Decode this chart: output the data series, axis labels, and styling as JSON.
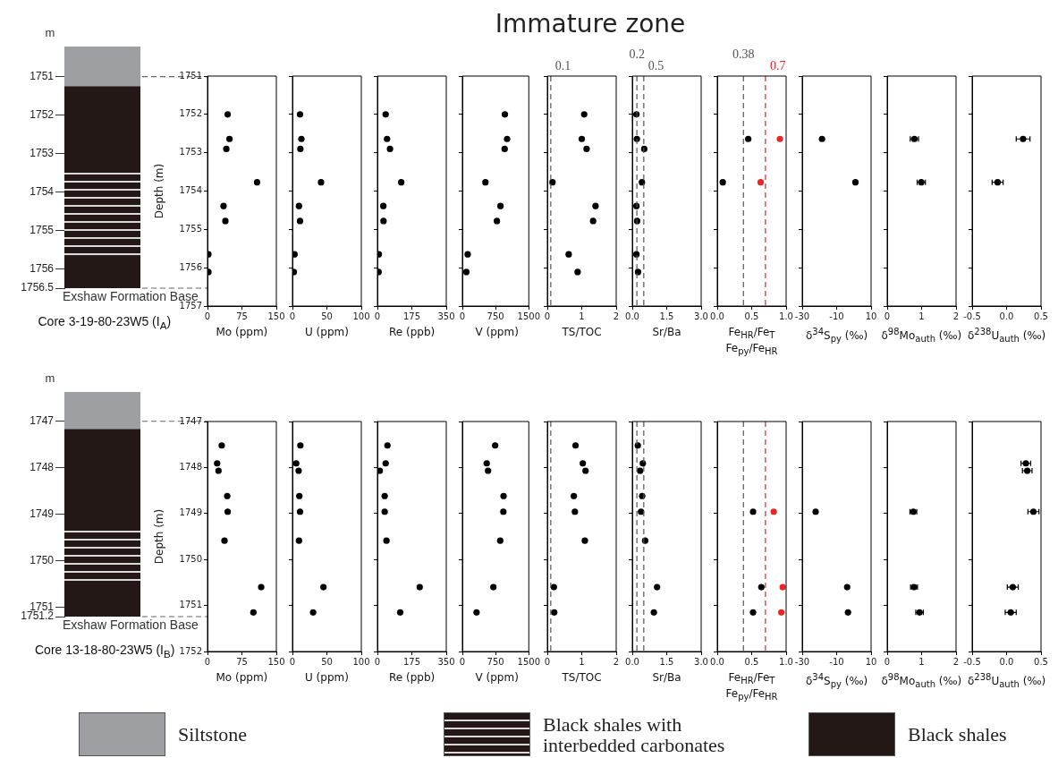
{
  "chart_data": [
    {
      "type": "other",
      "title": "Immature zone"
    },
    {
      "type": "bar",
      "xlabel": "Core 3-19-80-23W5 (I$_{A}$)",
      "ylabel": "m",
      "categories": [
        null
      ],
      "ylim": [
        1756.5,
        1750.22
      ],
      "yticks": [
        1751,
        1752,
        1753,
        1754,
        1755,
        1756,
        1756.5
      ],
      "legend": "bottom",
      "series": [
        {
          "name": "Siltstone",
          "color": "#9d9fa2",
          "base": [
            1750.22
          ],
          "values": [
            1.03
          ]
        },
        {
          "name": "Black shales with interbedded carbonates",
          "color": "#231815",
          "line_style": "solid",
          "base": [
            1753.33
          ],
          "values": [
            2.32
          ]
        },
        {
          "name": "Black shales",
          "color": "#231815",
          "base": [
            1751.25
          ],
          "values": [
            2.08
          ]
        },
        {
          "color": "#231815",
          "base": [
            1755.65
          ],
          "values": [
            0.85
          ]
        }
      ],
      "ref_lines": [
        {
          "axis": "y",
          "value": 1751,
          "label": null,
          "color": "#666666",
          "line_style": "dashed"
        },
        {
          "axis": "y",
          "value": 1756.5,
          "label": "Exshaw Formation Base",
          "color": "#666666",
          "line_style": "dashed"
        }
      ]
    },
    {
      "type": "scatter",
      "xlabel": "Mo (ppm)",
      "ylabel": "Depth (m)",
      "xlim": [
        0,
        150
      ],
      "xticks": [
        0,
        75,
        150
      ],
      "ylim": [
        1757,
        1751
      ],
      "yticks": [
        1751,
        1752,
        1753,
        1754,
        1755,
        1756,
        1757
      ],
      "marker": "circle",
      "series": [
        {
          "color": "#000000",
          "x": [
            44,
            48,
            41,
            108,
            35,
            39,
            2,
            2
          ],
          "values": [
            1752.0,
            1752.64,
            1752.9,
            1753.77,
            1754.39,
            1754.78,
            1755.65,
            1756.11
          ]
        }
      ]
    },
    {
      "type": "scatter",
      "xlabel": "U (ppm)",
      "xlim": [
        0,
        100
      ],
      "xticks": [
        0,
        50,
        100
      ],
      "ylim": [
        1757,
        1751
      ],
      "yticks": [
        1751,
        1752,
        1753,
        1754,
        1755,
        1756,
        1757
      ],
      "marker": "circle",
      "tick_labels": "x",
      "series": [
        {
          "color": "#000000",
          "x": [
            11,
            13,
            11.5,
            41.5,
            9.5,
            11,
            3,
            2
          ],
          "values": [
            1752.0,
            1752.64,
            1752.9,
            1753.77,
            1754.39,
            1754.78,
            1755.65,
            1756.11
          ]
        }
      ]
    },
    {
      "type": "scatter",
      "xlabel": "Re (ppb)",
      "xlim": [
        0,
        350
      ],
      "xticks": [
        0,
        175,
        350
      ],
      "ylim": [
        1757,
        1751
      ],
      "yticks": [
        1751,
        1752,
        1753,
        1754,
        1755,
        1756,
        1757
      ],
      "marker": "circle",
      "tick_labels": "x",
      "series": [
        {
          "color": "#000000",
          "x": [
            42,
            49,
            64,
            121,
            30,
            31,
            7,
            6
          ],
          "values": [
            1752.0,
            1752.64,
            1752.9,
            1753.77,
            1754.39,
            1754.78,
            1755.65,
            1756.11
          ]
        }
      ]
    },
    {
      "type": "scatter",
      "xlabel": "V (ppm)",
      "xlim": [
        0,
        1500
      ],
      "xticks": [
        0,
        750,
        1500
      ],
      "ylim": [
        1757,
        1751
      ],
      "yticks": [
        1751,
        1752,
        1753,
        1754,
        1755,
        1756,
        1757
      ],
      "marker": "circle",
      "tick_labels": "x",
      "series": [
        {
          "color": "#000000",
          "x": [
            960,
            1010,
            955,
            520,
            860,
            780,
            120,
            90
          ],
          "values": [
            1752.0,
            1752.64,
            1752.9,
            1753.77,
            1754.39,
            1754.78,
            1755.65,
            1756.11
          ]
        }
      ]
    },
    {
      "type": "scatter",
      "xlabel": "TS/TOC",
      "xlim": [
        0,
        2
      ],
      "xticks": [
        0,
        1,
        2
      ],
      "ylim": [
        1757,
        1751
      ],
      "yticks": [
        1751,
        1752,
        1753,
        1754,
        1755,
        1756,
        1757
      ],
      "marker": "circle",
      "tick_labels": "x",
      "series": [
        {
          "color": "#000000",
          "x": [
            1.07,
            1.0,
            1.14,
            0.15,
            1.4,
            1.33,
            0.62,
            0.88
          ],
          "values": [
            1752.0,
            1752.64,
            1752.9,
            1753.77,
            1754.39,
            1754.78,
            1755.65,
            1756.11
          ]
        }
      ],
      "ref_lines": [
        {
          "axis": "x",
          "value": 0.1,
          "label": "0.1",
          "color": "#555555",
          "line_style": "dashed"
        }
      ]
    },
    {
      "type": "scatter",
      "xlabel": "Sr/Ba",
      "xlim": [
        0,
        3
      ],
      "xticks": [
        {
          "value": 0,
          "label": "0.0"
        },
        1.5,
        {
          "value": 3,
          "label": "3.0"
        }
      ],
      "ylim": [
        1757,
        1751
      ],
      "yticks": [
        1751,
        1752,
        1753,
        1754,
        1755,
        1756,
        1757
      ],
      "marker": "circle",
      "tick_labels": "x",
      "series": [
        {
          "color": "#000000",
          "x": [
            0.18,
            0.2,
            0.52,
            0.42,
            0.18,
            0.21,
            0.18,
            0.25
          ],
          "values": [
            1752.0,
            1752.64,
            1752.9,
            1753.77,
            1754.39,
            1754.78,
            1755.65,
            1756.11
          ]
        }
      ],
      "ref_lines": [
        {
          "axis": "x",
          "value": 0.2,
          "label": "0.2",
          "color": "#555555",
          "line_style": "dashed"
        },
        {
          "axis": "x",
          "value": 0.5,
          "label": "0.5",
          "color": "#555555",
          "line_style": "dashed"
        }
      ]
    },
    {
      "type": "scatter",
      "xlabel": "Fe$_{HR}$/Fe$_{T}$\nFe$_{py}$/Fe$_{HR}$",
      "xlim": [
        0,
        1
      ],
      "xticks": [
        {
          "value": 0,
          "label": "0.0"
        },
        0.5,
        {
          "value": 1,
          "label": "1.0"
        }
      ],
      "ylim": [
        1757,
        1751
      ],
      "yticks": [
        1751,
        1752,
        1753,
        1754,
        1755,
        1756,
        1757
      ],
      "marker": "circle",
      "tick_labels": "x",
      "series": [
        {
          "color": "#000000",
          "x": [
            0.45,
            0.08
          ],
          "values": [
            1752.64,
            1753.77
          ]
        },
        {
          "color": "#e8262a",
          "x": [
            0.91,
            0.63
          ],
          "values": [
            1752.64,
            1753.77
          ]
        }
      ],
      "ref_lines": [
        {
          "axis": "x",
          "value": 0.38,
          "label": "0.38",
          "color": "#555555",
          "line_style": "dashed"
        },
        {
          "axis": "x",
          "value": 0.7,
          "label": "0.7",
          "color": "#e8262a",
          "line_style": "dashed"
        }
      ]
    },
    {
      "type": "scatter",
      "xlabel": "δ$^{34}$S$_{py}$ (‰)",
      "xlim": [
        -30,
        10
      ],
      "xticks": [
        -30,
        -10,
        10
      ],
      "ylim": [
        1757,
        1751
      ],
      "yticks": [
        1751,
        1752,
        1753,
        1754,
        1755,
        1756,
        1757
      ],
      "marker": "circle",
      "tick_labels": "x",
      "series": [
        {
          "color": "#000000",
          "x": [
            -18.5,
            0.9
          ],
          "values": [
            1752.64,
            1753.77
          ]
        }
      ]
    },
    {
      "type": "scatter",
      "xlabel": "δ$^{98}$Mo$_{auth}$ (‰)",
      "xlim": [
        0,
        2
      ],
      "xticks": [
        0,
        1,
        2
      ],
      "ylim": [
        1757,
        1751
      ],
      "yticks": [
        1751,
        1752,
        1753,
        1754,
        1755,
        1756,
        1757
      ],
      "marker": "circle",
      "tick_labels": "x",
      "series": [
        {
          "color": "#000000",
          "x": [
            0.79,
            0.99
          ],
          "values": [
            1752.64,
            1753.77
          ],
          "xerrors": [
            0.12,
            0.12
          ]
        }
      ]
    },
    {
      "type": "scatter",
      "xlabel": "δ$^{238}$U$_{auth}$ (‰)",
      "xlim": [
        -0.5,
        0.5
      ],
      "xticks": [
        -0.5,
        {
          "value": 0,
          "label": "0.0"
        },
        0.5
      ],
      "ylim": [
        1757,
        1751
      ],
      "yticks": [
        1751,
        1752,
        1753,
        1754,
        1755,
        1756,
        1757
      ],
      "marker": "circle",
      "tick_labels": "x",
      "series": [
        {
          "color": "#000000",
          "x": [
            0.24,
            -0.13
          ],
          "values": [
            1752.64,
            1753.77
          ],
          "xerrors": [
            0.1,
            0.08
          ]
        }
      ]
    },
    {
      "type": "bar",
      "xlabel": "Core 13-18-80-23W5 (I$_{B}$)",
      "ylabel": "m",
      "categories": [
        null
      ],
      "ylim": [
        1751.2,
        1746.37
      ],
      "yticks": [
        1747,
        1748,
        1749,
        1750,
        1751,
        1751.2
      ],
      "series": [
        {
          "color": "#9d9fa2",
          "base": [
            1746.37
          ],
          "values": [
            0.79
          ]
        },
        {
          "color": "#231815",
          "line_style": "solid",
          "base": [
            1749.21
          ],
          "values": [
            1.27
          ]
        },
        {
          "color": "#231815",
          "base": [
            1747.16
          ],
          "values": [
            2.05
          ]
        },
        {
          "color": "#231815",
          "base": [
            1750.48
          ],
          "values": [
            0.72
          ]
        }
      ],
      "ref_lines": [
        {
          "axis": "y",
          "value": 1747,
          "label": null,
          "color": "#666666",
          "line_style": "dashed"
        },
        {
          "axis": "y",
          "value": 1751.2,
          "label": "Exshaw Formation Base",
          "color": "#666666",
          "line_style": "dashed"
        }
      ]
    },
    {
      "type": "scatter",
      "xlabel": "Mo (ppm)",
      "ylabel": "Depth (m)",
      "xlim": [
        0,
        150
      ],
      "xticks": [
        0,
        75,
        150
      ],
      "ylim": [
        1752,
        1747
      ],
      "yticks": [
        1747,
        1748,
        1749,
        1750,
        1751,
        1752
      ],
      "marker": "circle",
      "series": [
        {
          "color": "#000000",
          "x": [
            31,
            21,
            24,
            43,
            44,
            37,
            117,
            100
          ],
          "values": [
            1747.52,
            1747.91,
            1748.07,
            1748.62,
            1748.96,
            1749.59,
            1750.6,
            1751.15
          ]
        }
      ]
    },
    {
      "type": "scatter",
      "xlabel": "U (ppm)",
      "xlim": [
        0,
        100
      ],
      "xticks": [
        0,
        50,
        100
      ],
      "ylim": [
        1752,
        1747
      ],
      "yticks": [
        1747,
        1748,
        1749,
        1750,
        1751,
        1752
      ],
      "marker": "circle",
      "tick_labels": "x",
      "series": [
        {
          "color": "#000000",
          "x": [
            11.5,
            5.5,
            9,
            10,
            11,
            9.5,
            45,
            30
          ],
          "values": [
            1747.52,
            1747.91,
            1748.07,
            1748.62,
            1748.96,
            1749.59,
            1750.6,
            1751.15
          ]
        }
      ]
    },
    {
      "type": "scatter",
      "xlabel": "Re (ppb)",
      "xlim": [
        0,
        350
      ],
      "xticks": [
        0,
        175,
        350
      ],
      "ylim": [
        1752,
        1747
      ],
      "yticks": [
        1747,
        1748,
        1749,
        1750,
        1751,
        1752
      ],
      "marker": "circle",
      "tick_labels": "x",
      "series": [
        {
          "color": "#000000",
          "x": [
            51,
            42,
            12,
            37,
            37,
            46,
            215,
            116
          ],
          "values": [
            1747.52,
            1747.91,
            1748.07,
            1748.62,
            1748.96,
            1749.59,
            1750.6,
            1751.15
          ]
        }
      ]
    },
    {
      "type": "scatter",
      "xlabel": "V (ppm)",
      "xlim": [
        0,
        1500
      ],
      "xticks": [
        0,
        750,
        1500
      ],
      "ylim": [
        1752,
        1747
      ],
      "yticks": [
        1747,
        1748,
        1749,
        1750,
        1751,
        1752
      ],
      "marker": "circle",
      "tick_labels": "x",
      "series": [
        {
          "color": "#000000",
          "x": [
            740,
            550,
            580,
            930,
            925,
            855,
            700,
            320
          ],
          "values": [
            1747.52,
            1747.91,
            1748.07,
            1748.62,
            1748.96,
            1749.59,
            1750.6,
            1751.15
          ]
        }
      ]
    },
    {
      "type": "scatter",
      "xlabel": "TS/TOC",
      "xlim": [
        0,
        2
      ],
      "xticks": [
        0,
        1,
        2
      ],
      "ylim": [
        1752,
        1747
      ],
      "yticks": [
        1747,
        1748,
        1749,
        1750,
        1751,
        1752
      ],
      "marker": "circle",
      "tick_labels": "x",
      "series": [
        {
          "color": "#000000",
          "x": [
            0.82,
            1.03,
            1.11,
            0.77,
            0.8,
            1.09,
            0.19,
            0.2
          ],
          "values": [
            1747.52,
            1747.91,
            1748.07,
            1748.62,
            1748.96,
            1749.59,
            1750.6,
            1751.15
          ]
        }
      ],
      "ref_lines": [
        {
          "axis": "x",
          "value": 0.1,
          "label": null,
          "color": "#555555",
          "line_style": "dashed"
        }
      ]
    },
    {
      "type": "scatter",
      "xlabel": "Sr/Ba",
      "xlim": [
        0,
        3
      ],
      "xticks": [
        {
          "value": 0,
          "label": "0.0"
        },
        1.5,
        {
          "value": 3,
          "label": "3.0"
        }
      ],
      "ylim": [
        1752,
        1747
      ],
      "yticks": [
        1747,
        1748,
        1749,
        1750,
        1751,
        1752
      ],
      "marker": "circle",
      "tick_labels": "x",
      "series": [
        {
          "color": "#000000",
          "x": [
            0.24,
            0.46,
            0.34,
            0.43,
            0.38,
            0.56,
            1.08,
            0.94
          ],
          "values": [
            1747.52,
            1747.91,
            1748.07,
            1748.62,
            1748.96,
            1749.59,
            1750.6,
            1751.15
          ]
        }
      ],
      "ref_lines": [
        {
          "axis": "x",
          "value": 0.2,
          "label": null,
          "color": "#555555",
          "line_style": "dashed"
        },
        {
          "axis": "x",
          "value": 0.5,
          "label": null,
          "color": "#555555",
          "line_style": "dashed"
        }
      ]
    },
    {
      "type": "scatter",
      "xlabel": "Fe$_{HR}$/Fe$_{T}$\nFe$_{py}$/Fe$_{HR}$",
      "xlim": [
        0,
        1
      ],
      "xticks": [
        {
          "value": 0,
          "label": "0.0"
        },
        0.5,
        {
          "value": 1,
          "label": "1.0"
        }
      ],
      "ylim": [
        1752,
        1747
      ],
      "yticks": [
        1747,
        1748,
        1749,
        1750,
        1751,
        1752
      ],
      "marker": "circle",
      "tick_labels": "x",
      "series": [
        {
          "color": "#000000",
          "x": [
            0.52,
            0.64,
            0.52
          ],
          "values": [
            1748.96,
            1750.6,
            1751.15
          ]
        },
        {
          "color": "#e8262a",
          "x": [
            0.82,
            0.95,
            0.93
          ],
          "values": [
            1748.96,
            1750.6,
            1751.15
          ]
        }
      ],
      "ref_lines": [
        {
          "axis": "x",
          "value": 0.38,
          "label": null,
          "color": "#555555",
          "line_style": "dashed"
        },
        {
          "axis": "x",
          "value": 0.7,
          "label": null,
          "color": "#e8262a",
          "line_style": "dashed"
        }
      ]
    },
    {
      "type": "scatter",
      "xlabel": "δ$^{34}$S$_{py}$ (‰)",
      "xlim": [
        -30,
        10
      ],
      "xticks": [
        -30,
        -10,
        10
      ],
      "ylim": [
        1752,
        1747
      ],
      "yticks": [
        1747,
        1748,
        1749,
        1750,
        1751,
        1752
      ],
      "marker": "circle",
      "tick_labels": "x",
      "series": [
        {
          "color": "#000000",
          "x": [
            -22.2,
            -3.9,
            -3.4
          ],
          "values": [
            1748.96,
            1750.6,
            1751.15
          ]
        }
      ]
    },
    {
      "type": "scatter",
      "xlabel": "δ$^{98}$Mo$_{auth}$ (‰)",
      "xlim": [
        0,
        2
      ],
      "xticks": [
        0,
        1,
        2
      ],
      "ylim": [
        1752,
        1747
      ],
      "yticks": [
        1747,
        1748,
        1749,
        1750,
        1751,
        1752
      ],
      "marker": "circle",
      "tick_labels": "x",
      "series": [
        {
          "color": "#000000",
          "x": [
            0.76,
            0.78,
            0.94
          ],
          "values": [
            1748.96,
            1750.6,
            1751.15
          ],
          "xerrors": [
            0.1,
            0.1,
            0.11
          ]
        }
      ]
    },
    {
      "type": "scatter",
      "xlabel": "δ$^{238}$U$_{auth}$ (‰)",
      "xlim": [
        -0.5,
        0.5
      ],
      "xticks": [
        -0.5,
        {
          "value": 0,
          "label": "0.0"
        },
        0.5
      ],
      "ylim": [
        1752,
        1747
      ],
      "yticks": [
        1747,
        1748,
        1749,
        1750,
        1751,
        1752
      ],
      "marker": "circle",
      "tick_labels": "x",
      "series": [
        {
          "color": "#000000",
          "x": [
            0.28,
            0.3,
            0.39,
            0.09,
            0.06
          ],
          "values": [
            1747.91,
            1748.07,
            1748.96,
            1750.6,
            1751.15
          ],
          "xerrors": [
            0.07,
            0.07,
            0.08,
            0.08,
            0.08
          ]
        }
      ]
    }
  ]
}
